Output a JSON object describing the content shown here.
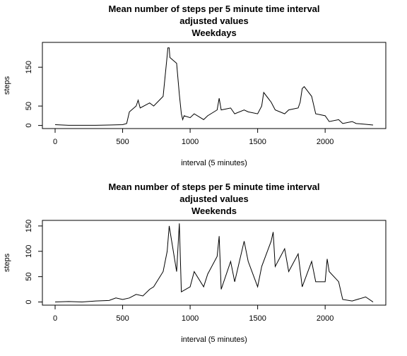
{
  "chart_data": [
    {
      "type": "line",
      "title": "Mean number of steps per 5 minute time interval",
      "subtitle": "adjusted values",
      "panel": "Weekdays",
      "x_label": "interval (5 minutes)",
      "y_label": "steps",
      "x": [
        0,
        100,
        200,
        300,
        400,
        500,
        530,
        550,
        600,
        615,
        630,
        700,
        730,
        800,
        830,
        835,
        845,
        850,
        900,
        920,
        935,
        945,
        955,
        1000,
        1030,
        1100,
        1130,
        1200,
        1215,
        1230,
        1300,
        1330,
        1400,
        1430,
        1500,
        1530,
        1545,
        1600,
        1630,
        1700,
        1730,
        1800,
        1815,
        1830,
        1845,
        1900,
        1930,
        2000,
        2030,
        2100,
        2130,
        2200,
        2230,
        2300,
        2355
      ],
      "values": [
        2,
        0.5,
        0.5,
        0.5,
        1,
        2,
        5,
        35,
        50,
        65,
        45,
        58,
        50,
        75,
        180,
        200,
        200,
        175,
        160,
        80,
        30,
        15,
        25,
        20,
        30,
        15,
        25,
        40,
        70,
        40,
        45,
        30,
        40,
        35,
        30,
        50,
        85,
        60,
        40,
        30,
        40,
        45,
        60,
        95,
        100,
        75,
        30,
        25,
        10,
        15,
        5,
        10,
        5,
        3,
        1
      ],
      "color": "#000000",
      "xlim": [
        -94.2,
        2449.2
      ],
      "xticks": [
        0,
        500,
        1000,
        1500,
        2000
      ],
      "ylim": [
        -8,
        214
      ],
      "yticks": [
        0,
        50,
        150
      ]
    },
    {
      "type": "line",
      "title": "Mean number of steps per 5 minute time interval",
      "subtitle": "adjusted values",
      "panel": "Weekends",
      "x_label": "interval (5 minutes)",
      "y_label": "steps",
      "x": [
        0,
        100,
        200,
        300,
        400,
        450,
        500,
        550,
        600,
        650,
        700,
        730,
        800,
        830,
        845,
        900,
        920,
        935,
        1000,
        1030,
        1100,
        1130,
        1200,
        1215,
        1230,
        1300,
        1330,
        1400,
        1430,
        1500,
        1530,
        1600,
        1615,
        1630,
        1700,
        1730,
        1800,
        1830,
        1900,
        1930,
        2000,
        2015,
        2030,
        2100,
        2130,
        2200,
        2300,
        2355
      ],
      "values": [
        0,
        1,
        0,
        2,
        3,
        8,
        5,
        8,
        15,
        12,
        25,
        30,
        60,
        100,
        150,
        60,
        155,
        20,
        30,
        60,
        30,
        55,
        90,
        130,
        25,
        80,
        40,
        120,
        80,
        30,
        70,
        120,
        138,
        70,
        105,
        60,
        95,
        30,
        80,
        40,
        40,
        85,
        60,
        40,
        5,
        2,
        10,
        0
      ],
      "color": "#000000",
      "xlim": [
        -94.2,
        2449.2
      ],
      "xticks": [
        0,
        500,
        1000,
        1500,
        2000
      ],
      "ylim": [
        -6.2,
        161
      ],
      "yticks": [
        0,
        50,
        100,
        150
      ]
    }
  ]
}
